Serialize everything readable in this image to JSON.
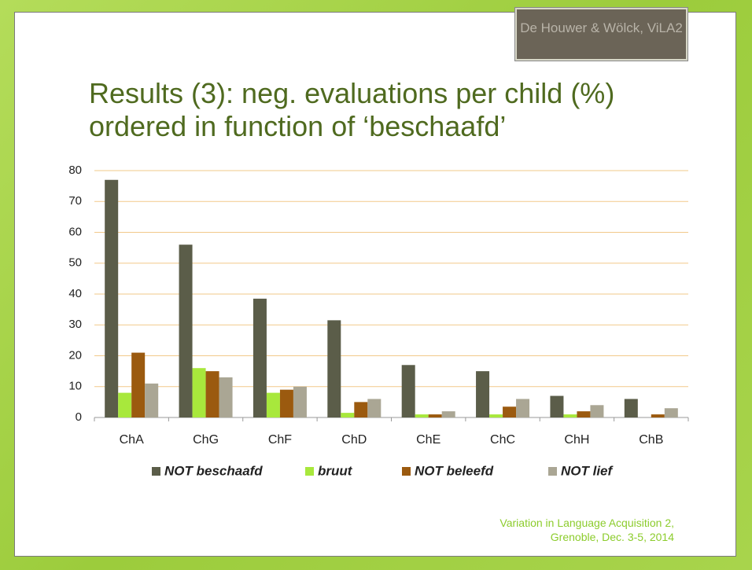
{
  "slide": {
    "source_label": "De Houwer & Wölck, ViLA2",
    "footer": [
      "Variation in Language Acquisition 2,",
      "Grenoble, Dec. 3-5, 2014"
    ]
  },
  "chart_data": {
    "type": "bar",
    "title": "Results (3): neg. evaluations per child (%) ordered in function of ‘beschaafd’",
    "categories": [
      "ChA",
      "ChG",
      "ChF",
      "ChD",
      "ChE",
      "ChC",
      "ChH",
      "ChB"
    ],
    "series": [
      {
        "name": "NOT beschaafd",
        "color": "#5b5d49",
        "values": [
          77,
          56,
          38.5,
          31.5,
          17,
          15,
          7,
          6
        ]
      },
      {
        "name": "bruut",
        "color": "#a8e83c",
        "values": [
          8,
          16,
          8,
          1.5,
          1,
          1,
          1,
          0
        ]
      },
      {
        "name": "NOT beleefd",
        "color": "#9b5a0f",
        "values": [
          21,
          15,
          9,
          5,
          1,
          3.5,
          2,
          1
        ]
      },
      {
        "name": "NOT lief",
        "color": "#aaa694",
        "values": [
          11,
          13,
          10,
          6,
          2,
          6,
          4,
          3
        ]
      }
    ],
    "ylim": [
      0,
      80
    ],
    "yticks": [
      0,
      10,
      20,
      30,
      40,
      50,
      60,
      70,
      80
    ],
    "grid": true,
    "legend": "bottom"
  }
}
